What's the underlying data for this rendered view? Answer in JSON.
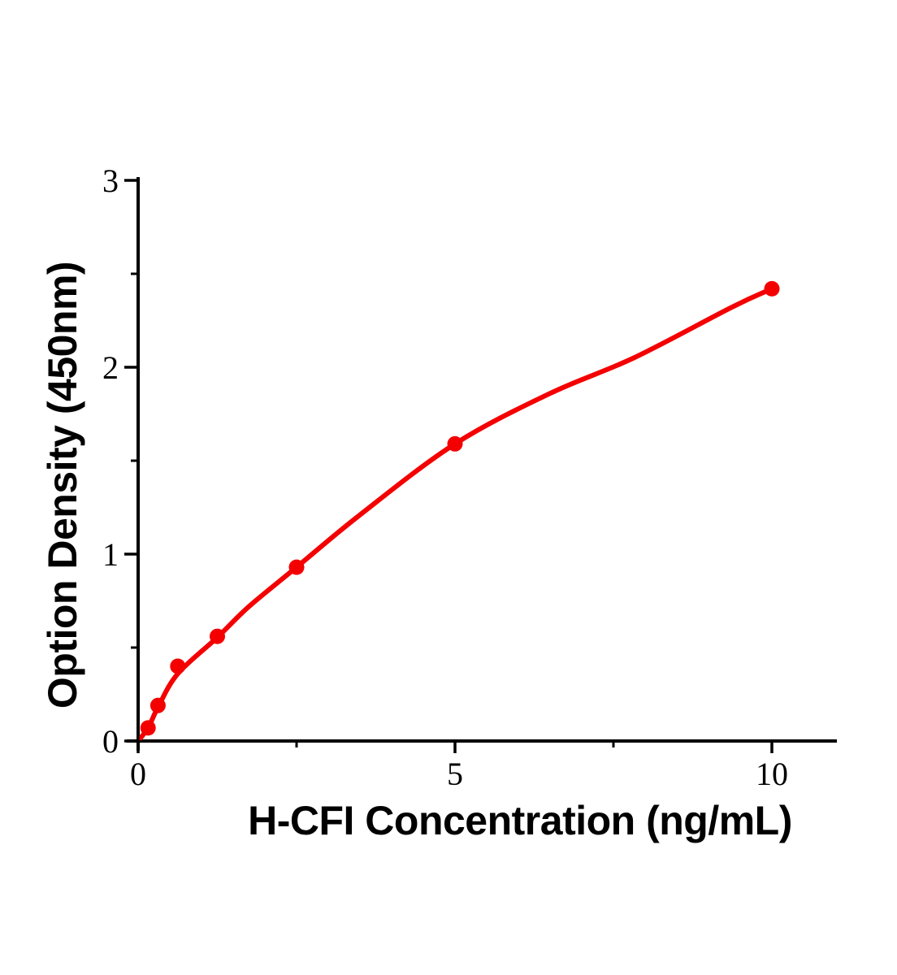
{
  "chart_data": {
    "type": "scatter",
    "title": "",
    "xlabel": "H-CFI Concentration (ng/mL)",
    "ylabel": "Option Density (450nm)",
    "xlim": [
      0,
      11
    ],
    "ylim": [
      0,
      3
    ],
    "grid": false,
    "legend_position": "none",
    "background_color": "#ffffff",
    "axis_color": "#000000",
    "accent_color": "#f50000",
    "x_ticks_major": [
      0,
      5,
      10
    ],
    "x_ticks_minor": [
      2.5,
      7.5
    ],
    "y_ticks_major": [
      0,
      1,
      2,
      3
    ],
    "y_ticks_minor": [
      0.5,
      1.5,
      2.5
    ],
    "series": [
      {
        "name": "standard-points",
        "type": "scatter",
        "color": "#f50000",
        "marker": "circle",
        "points": [
          [
            0.156,
            0.07
          ],
          [
            0.3125,
            0.19
          ],
          [
            0.625,
            0.4
          ],
          [
            1.25,
            0.56
          ],
          [
            2.5,
            0.93
          ],
          [
            5,
            1.59
          ],
          [
            10,
            2.42
          ]
        ]
      },
      {
        "name": "fitted-curve",
        "type": "line",
        "color": "#f50000",
        "points": [
          [
            0,
            0
          ],
          [
            0.156,
            0.07
          ],
          [
            0.3125,
            0.18
          ],
          [
            0.625,
            0.36
          ],
          [
            1.25,
            0.555
          ],
          [
            1.75,
            0.72
          ],
          [
            2.5,
            0.93
          ],
          [
            3.5,
            1.21
          ],
          [
            5,
            1.59
          ],
          [
            6.5,
            1.86
          ],
          [
            7.82,
            2.05
          ],
          [
            9.36,
            2.32
          ],
          [
            10,
            2.42
          ]
        ]
      }
    ]
  }
}
